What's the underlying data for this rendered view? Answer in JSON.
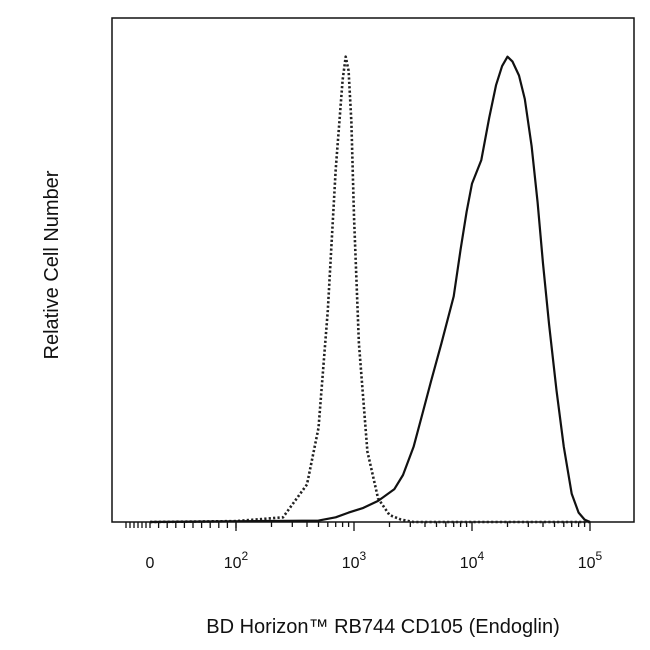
{
  "chart_data": {
    "type": "line",
    "title": "",
    "xlabel": "BD Horizon™ RB744 CD105 (Endoglin)",
    "ylabel": "Relative Cell Number",
    "x_scale": "biexponential (log above 10^2, linear near 0)",
    "grid": false,
    "legend": "none",
    "xticks": [
      {
        "value": 0,
        "base": "0",
        "exp": ""
      },
      {
        "value": 100,
        "base": "10",
        "exp": "2"
      },
      {
        "value": 1000,
        "base": "10",
        "exp": "3"
      },
      {
        "value": 10000,
        "base": "10",
        "exp": "4"
      },
      {
        "value": 100000,
        "base": "10",
        "exp": "5"
      }
    ],
    "series": [
      {
        "style": "dotted",
        "color": "#222222",
        "x": [
          0,
          100,
          250,
          400,
          500,
          600,
          700,
          800,
          850,
          900,
          950,
          1000,
          1100,
          1300,
          1600,
          2000,
          2500,
          3200,
          5000,
          100000
        ],
        "y": [
          0,
          0.002,
          0.01,
          0.08,
          0.2,
          0.45,
          0.75,
          0.94,
          0.99,
          0.96,
          0.85,
          0.65,
          0.38,
          0.15,
          0.05,
          0.015,
          0.005,
          0.0,
          0.0,
          0.0
        ]
      },
      {
        "style": "solid",
        "color": "#111111",
        "x": [
          0,
          500,
          700,
          900,
          1200,
          1600,
          2200,
          2600,
          3200,
          3800,
          4500,
          5500,
          7000,
          8000,
          9000,
          10000,
          12000,
          14000,
          16000,
          18000,
          20000,
          22000,
          25000,
          28000,
          32000,
          36000,
          40000,
          45000,
          52000,
          60000,
          70000,
          80000,
          90000,
          100000
        ],
        "y": [
          0,
          0.003,
          0.01,
          0.02,
          0.03,
          0.045,
          0.07,
          0.1,
          0.16,
          0.23,
          0.3,
          0.38,
          0.48,
          0.58,
          0.66,
          0.72,
          0.77,
          0.86,
          0.93,
          0.97,
          0.99,
          0.98,
          0.95,
          0.9,
          0.8,
          0.68,
          0.55,
          0.42,
          0.28,
          0.16,
          0.06,
          0.02,
          0.005,
          0.0
        ]
      }
    ]
  }
}
